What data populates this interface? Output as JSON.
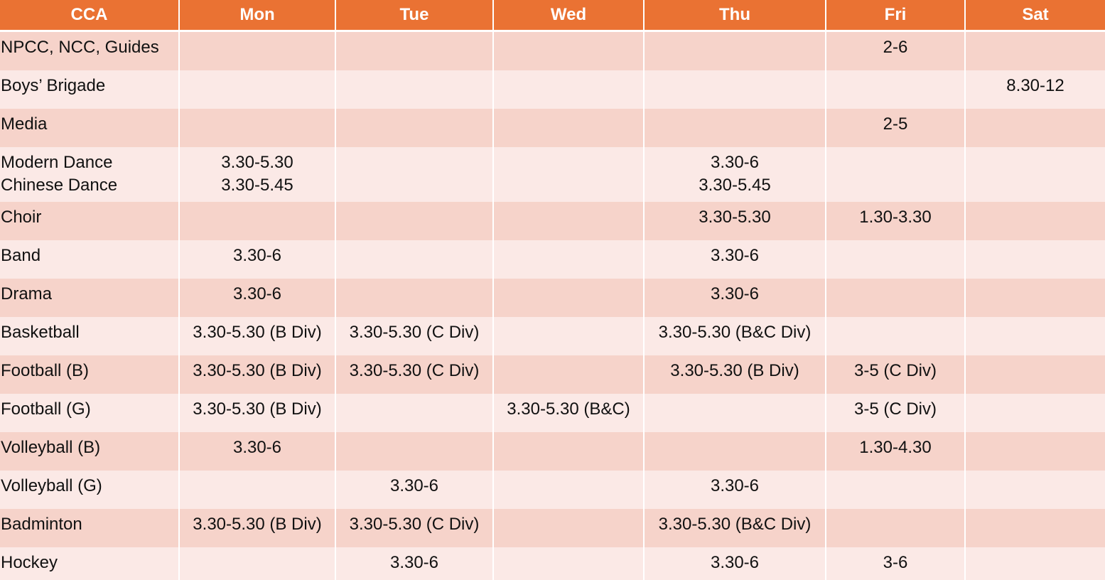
{
  "colors": {
    "header": "#ea7233",
    "row_dark": "#f6d3ca",
    "row_light": "#fbe9e6"
  },
  "headers": [
    "CCA",
    "Mon",
    "Tue",
    "Wed",
    "Thu",
    "Fri",
    "Sat"
  ],
  "rows": [
    {
      "cca": "NPCC, NCC, Guides",
      "mon": "",
      "tue": "",
      "wed": "",
      "thu": "",
      "fri": "2-6",
      "sat": ""
    },
    {
      "cca": "Boys’ Brigade",
      "mon": "",
      "tue": "",
      "wed": "",
      "thu": "",
      "fri": "",
      "sat": "8.30-12"
    },
    {
      "cca": "Media",
      "mon": "",
      "tue": "",
      "wed": "",
      "thu": "",
      "fri": "2-5",
      "sat": ""
    },
    {
      "cca": [
        "Modern Dance",
        "Chinese Dance"
      ],
      "mon": [
        "3.30-5.30",
        "3.30-5.45"
      ],
      "tue": "",
      "wed": "",
      "thu": [
        "3.30-6",
        "3.30-5.45"
      ],
      "fri": "",
      "sat": ""
    },
    {
      "cca": "Choir",
      "mon": "",
      "tue": "",
      "wed": "",
      "thu": "3.30-5.30",
      "fri": "1.30-3.30",
      "sat": ""
    },
    {
      "cca": "Band",
      "mon": "3.30-6",
      "tue": "",
      "wed": "",
      "thu": "3.30-6",
      "fri": "",
      "sat": ""
    },
    {
      "cca": "Drama",
      "mon": "3.30-6",
      "tue": "",
      "wed": "",
      "thu": "3.30-6",
      "fri": "",
      "sat": ""
    },
    {
      "cca": "Basketball",
      "mon": "3.30-5.30 (B Div)",
      "tue": "3.30-5.30 (C Div)",
      "wed": "",
      "thu": "3.30-5.30 (B&C Div)",
      "fri": "",
      "sat": ""
    },
    {
      "cca": "Football (B)",
      "mon": "3.30-5.30 (B Div)",
      "tue": "3.30-5.30 (C Div)",
      "wed": "",
      "thu": "3.30-5.30 (B Div)",
      "fri": "3-5 (C Div)",
      "sat": ""
    },
    {
      "cca": "Football (G)",
      "mon": "3.30-5.30 (B Div)",
      "tue": "",
      "wed": "3.30-5.30 (B&C)",
      "thu": "",
      "fri": "3-5 (C Div)",
      "sat": ""
    },
    {
      "cca": "Volleyball (B)",
      "mon": "3.30-6",
      "tue": "",
      "wed": "",
      "thu": "",
      "fri": "1.30-4.30",
      "sat": ""
    },
    {
      "cca": "Volleyball (G)",
      "mon": "",
      "tue": "3.30-6",
      "wed": "",
      "thu": "3.30-6",
      "fri": "",
      "sat": ""
    },
    {
      "cca": "Badminton",
      "mon": "3.30-5.30 (B Div)",
      "tue": "3.30-5.30 (C Div)",
      "wed": "",
      "thu": "3.30-5.30 (B&C Div)",
      "fri": "",
      "sat": ""
    },
    {
      "cca": "Hockey",
      "mon": "",
      "tue": "3.30-6",
      "wed": "",
      "thu": "3.30-6",
      "fri": "3-6",
      "sat": ""
    }
  ]
}
